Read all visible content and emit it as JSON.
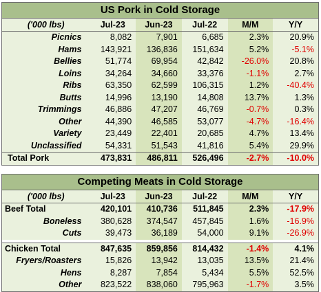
{
  "pork": {
    "title": "US Pork in Cold Storage",
    "headers": [
      "('000 lbs)",
      "Jul-23",
      "Jun-23",
      "Jul-22",
      "M/M",
      "Y/Y"
    ],
    "rows": [
      {
        "label": "Picnics",
        "jul23": "8,082",
        "jun23": "7,901",
        "jul22": "6,685",
        "mm": "2.3%",
        "yy": "20.9%"
      },
      {
        "label": "Hams",
        "jul23": "143,921",
        "jun23": "136,836",
        "jul22": "151,634",
        "mm": "5.2%",
        "yy": "-5.1%"
      },
      {
        "label": "Bellies",
        "jul23": "51,774",
        "jun23": "69,954",
        "jul22": "42,842",
        "mm": "-26.0%",
        "yy": "20.8%"
      },
      {
        "label": "Loins",
        "jul23": "34,264",
        "jun23": "34,660",
        "jul22": "33,376",
        "mm": "-1.1%",
        "yy": "2.7%"
      },
      {
        "label": "Ribs",
        "jul23": "63,350",
        "jun23": "62,599",
        "jul22": "106,315",
        "mm": "1.2%",
        "yy": "-40.4%"
      },
      {
        "label": "Butts",
        "jul23": "14,996",
        "jun23": "13,190",
        "jul22": "14,808",
        "mm": "13.7%",
        "yy": "1.3%"
      },
      {
        "label": "Trimmings",
        "jul23": "46,886",
        "jun23": "47,207",
        "jul22": "46,769",
        "mm": "-0.7%",
        "yy": "0.3%"
      },
      {
        "label": "Other",
        "jul23": "44,390",
        "jun23": "46,585",
        "jul22": "53,077",
        "mm": "-4.7%",
        "yy": "-16.4%"
      },
      {
        "label": "Variety",
        "jul23": "23,449",
        "jun23": "22,401",
        "jul22": "20,685",
        "mm": "4.7%",
        "yy": "13.4%"
      },
      {
        "label": "Unclassified",
        "jul23": "54,331",
        "jun23": "51,543",
        "jul22": "41,816",
        "mm": "5.4%",
        "yy": "29.9%"
      }
    ],
    "total": {
      "label": "Total Pork",
      "jul23": "473,831",
      "jun23": "486,811",
      "jul22": "526,496",
      "mm": "-2.7%",
      "yy": "-10.0%"
    }
  },
  "meats": {
    "title": "Competing Meats in Cold Storage",
    "headers": [
      "('000 lbs)",
      "Jul-23",
      "Jun-23",
      "Jul-22",
      "M/M",
      "Y/Y"
    ],
    "beef_total": {
      "label": "Beef Total",
      "jul23": "420,101",
      "jun23": "410,736",
      "jul22": "511,845",
      "mm": "2.3%",
      "yy": "-17.9%"
    },
    "beef_rows": [
      {
        "label": "Boneless",
        "jul23": "380,628",
        "jun23": "374,547",
        "jul22": "457,845",
        "mm": "1.6%",
        "yy": "-16.9%"
      },
      {
        "label": "Cuts",
        "jul23": "39,473",
        "jun23": "36,189",
        "jul22": "54,000",
        "mm": "9.1%",
        "yy": "-26.9%"
      }
    ],
    "chicken_total": {
      "label": "Chicken Total",
      "jul23": "847,635",
      "jun23": "859,856",
      "jul22": "814,432",
      "mm": "-1.4%",
      "yy": "4.1%"
    },
    "chicken_rows": [
      {
        "label": "Fryers/Roasters",
        "jul23": "15,826",
        "jun23": "13,942",
        "jul22": "13,035",
        "mm": "13.5%",
        "yy": "21.4%"
      },
      {
        "label": "Hens",
        "jul23": "8,287",
        "jun23": "7,854",
        "jul22": "5,434",
        "mm": "5.5%",
        "yy": "52.5%"
      },
      {
        "label": "Other",
        "jul23": "823,522",
        "jun23": "838,060",
        "jul22": "795,963",
        "mm": "-1.7%",
        "yy": "3.5%"
      }
    ]
  }
}
